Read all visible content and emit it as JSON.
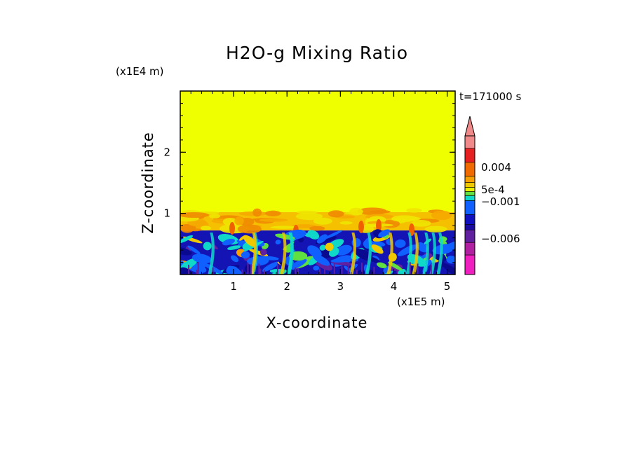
{
  "chart_data": {
    "type": "heatmap",
    "title": "H2O-g Mixing Ratio",
    "xlabel": "X-coordinate",
    "ylabel": "Z-coordinate",
    "x_unit": "(x1E5 m)",
    "y_unit": "(x1E4 m)",
    "time_label": "t=171000 s",
    "xlim": [
      0,
      5.15
    ],
    "ylim": [
      0,
      3.0
    ],
    "x_ticks": [
      1,
      2,
      3,
      4,
      5
    ],
    "y_ticks": [
      1,
      2
    ],
    "colorbar": {
      "labels": [
        {
          "text": "0.004",
          "value": 0.004
        },
        {
          "text": "5e-4",
          "value": 0.0005
        },
        {
          "text": "−0.001",
          "value": -0.001
        },
        {
          "text": "−0.006",
          "value": -0.006
        }
      ],
      "colors_top_to_bottom": [
        "#f08a8a",
        "#e62020",
        "#f06a00",
        "#f5a000",
        "#f0c800",
        "#e8f000",
        "#60e040",
        "#10d8c8",
        "#1060ff",
        "#1010c0",
        "#1a0aa0",
        "#6020a0",
        "#b020a0",
        "#f020c0"
      ],
      "extend": "max"
    },
    "regions": [
      {
        "name": "upper-uniform",
        "z_range": [
          1.02,
          3.0
        ],
        "level_color": "#f0ff00"
      },
      {
        "name": "transition",
        "z_range": [
          0.72,
          1.02
        ],
        "level_color": "#f5c000"
      },
      {
        "name": "lower-turbulent",
        "z_range": [
          0.0,
          0.72
        ],
        "level_color": "#1414b4"
      }
    ]
  }
}
